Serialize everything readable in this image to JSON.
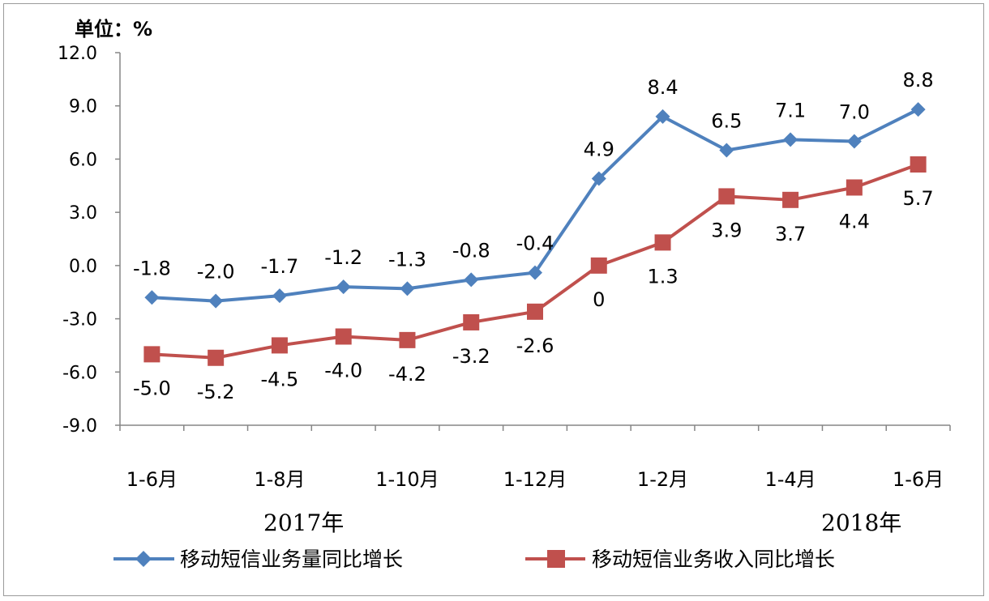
{
  "chart_data": {
    "type": "line",
    "unit_label": "单位：%",
    "categories": [
      "1-6月",
      "",
      "1-8月",
      "",
      "1-10月",
      "",
      "1-12月",
      "",
      "1-2月",
      "",
      "1-4月",
      "",
      "1-6月"
    ],
    "year_labels": [
      "2017年",
      "2018年"
    ],
    "ylim": [
      -9.0,
      12.0
    ],
    "yticks": [
      "12.0",
      "9.0",
      "6.0",
      "3.0",
      "0.0",
      "-3.0",
      "-6.0",
      "-9.0"
    ],
    "series": [
      {
        "name": "移动短信业务量同比增长",
        "color": "#4F81BD",
        "marker": "diamond",
        "values": [
          -1.8,
          -2.0,
          -1.7,
          -1.2,
          -1.3,
          -0.8,
          -0.4,
          4.9,
          8.4,
          6.5,
          7.1,
          7.0,
          8.8
        ],
        "labels": [
          "-1.8",
          "-2.0",
          "-1.7",
          "-1.2",
          "-1.3",
          "-0.8",
          "-0.4",
          "4.9",
          "8.4",
          "6.5",
          "7.1",
          "7.0",
          "8.8"
        ]
      },
      {
        "name": "移动短信业务收入同比增长",
        "color": "#C0504D",
        "marker": "square",
        "values": [
          -5.0,
          -5.2,
          -4.5,
          -4.0,
          -4.2,
          -3.2,
          -2.6,
          0,
          1.3,
          3.9,
          3.7,
          4.4,
          5.7
        ],
        "labels": [
          "-5.0",
          "-5.2",
          "-4.5",
          "-4.0",
          "-4.2",
          "-3.2",
          "-2.6",
          "0",
          "1.3",
          "3.9",
          "3.7",
          "4.4",
          "5.7"
        ]
      }
    ],
    "grid": false,
    "legend": "bottom"
  }
}
